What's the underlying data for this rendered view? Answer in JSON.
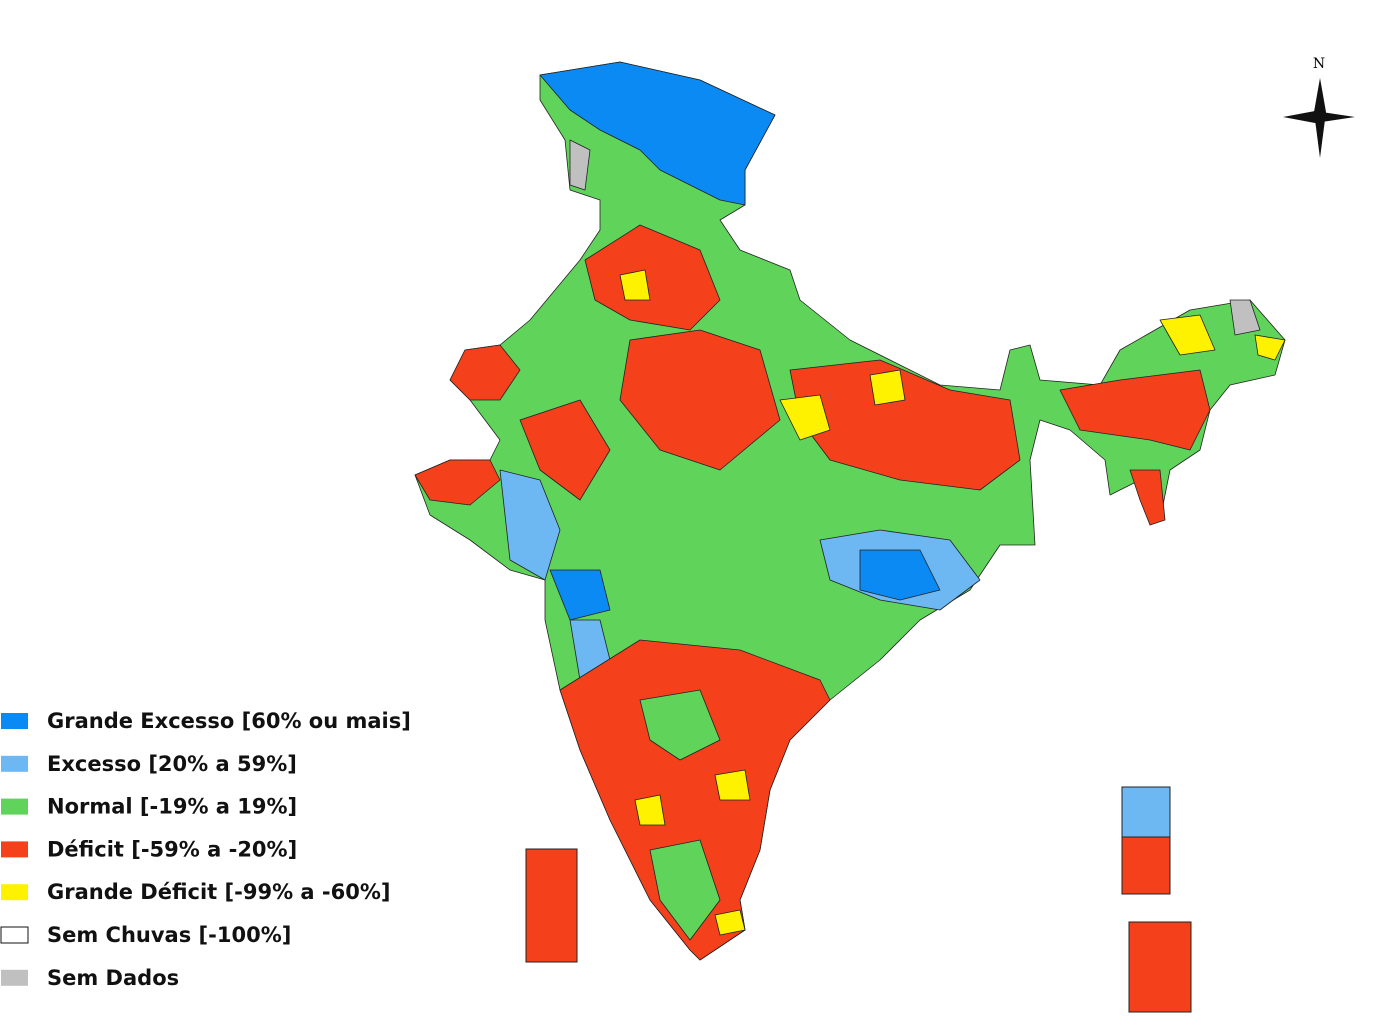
{
  "north_label": "N",
  "legend": {
    "items": [
      {
        "label": "Grande Excesso [60% ou mais]",
        "color": "#0a8af2"
      },
      {
        "label": "Excesso [20% a 59%]",
        "color": "#6db8f2"
      },
      {
        "label": "Normal [-19% a 19%]",
        "color": "#5fd35a"
      },
      {
        "label": "Déficit [-59% a -20%]",
        "color": "#f4401b"
      },
      {
        "label": "Grande Déficit [-99% a -60%]",
        "color": "#fff200"
      },
      {
        "label": "Sem Chuvas [-100%]",
        "color": "#ffffff"
      },
      {
        "label": "Sem Dados",
        "color": "#c0c0c0"
      }
    ]
  }
}
